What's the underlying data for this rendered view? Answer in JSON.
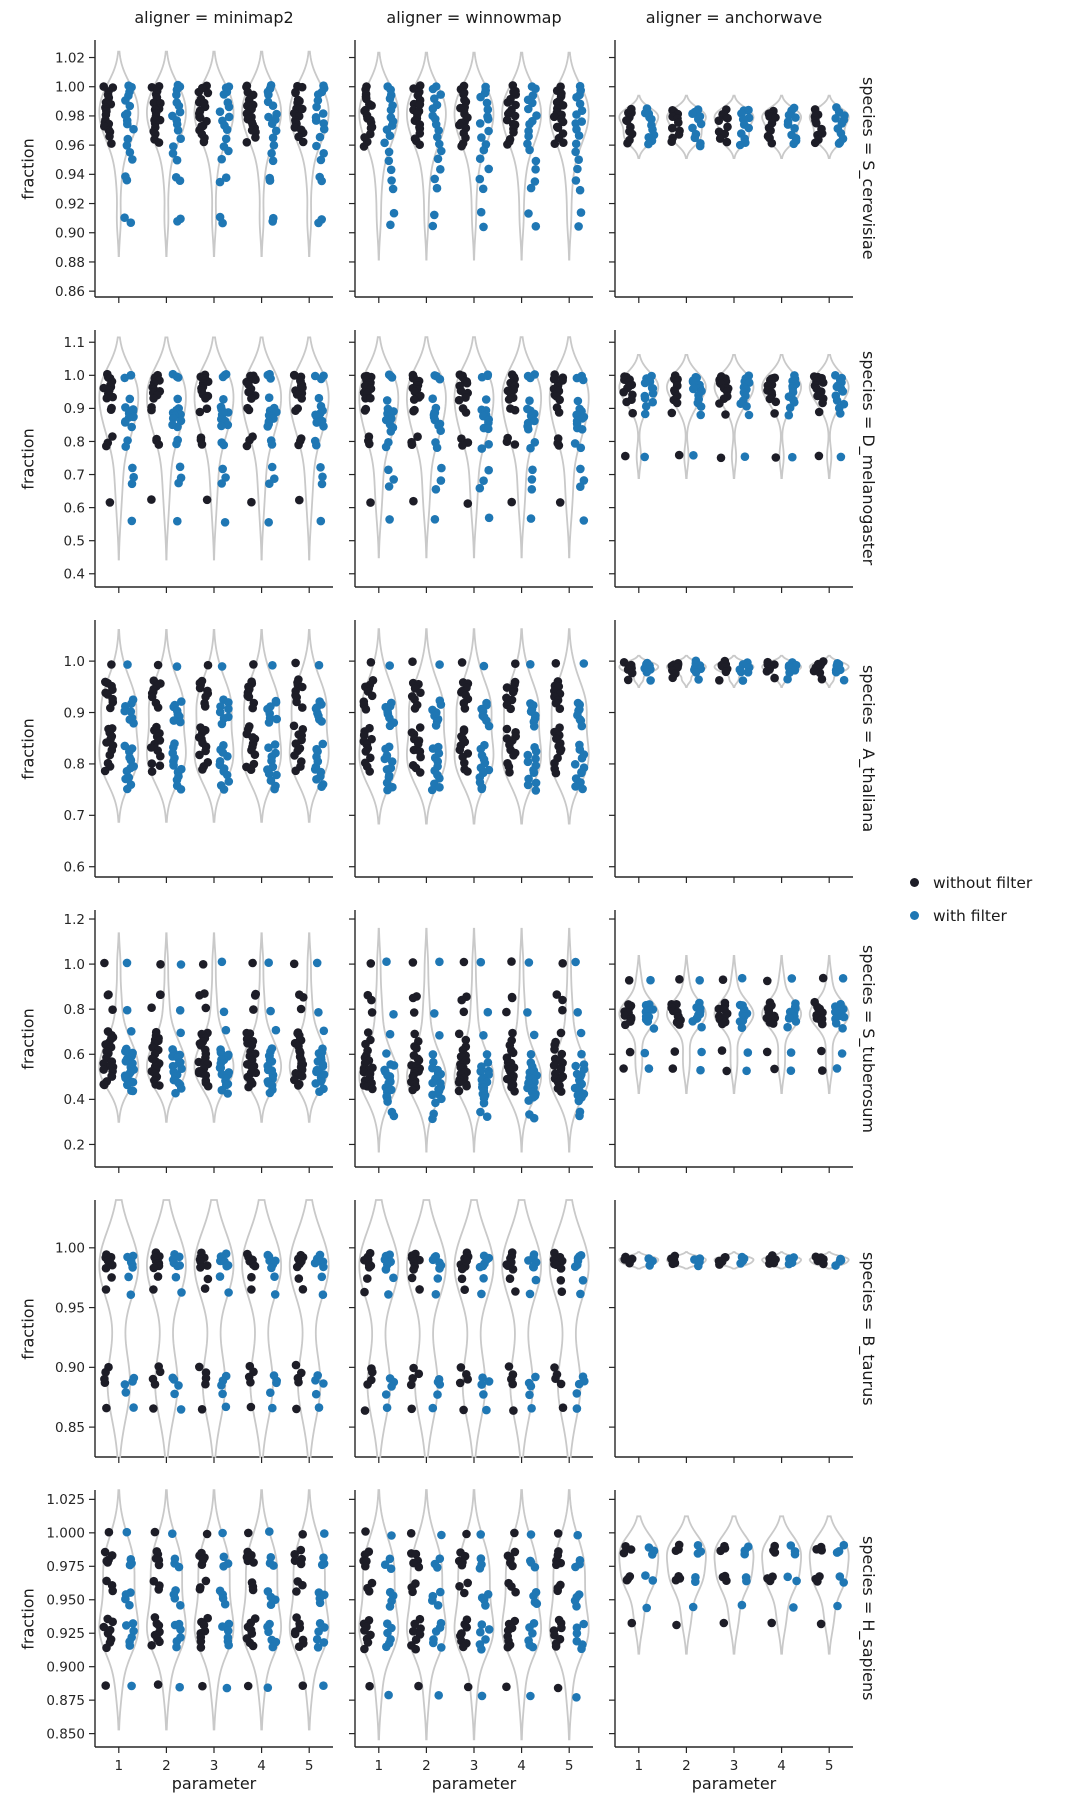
{
  "chart_data": {
    "type": "violin+strip faceted catplot",
    "xlabel": "parameter",
    "ylabel": "fraction",
    "x_categories": [
      "1",
      "2",
      "3",
      "4",
      "5"
    ],
    "violin_color": "#c9c9c9",
    "axis_color": "#262626",
    "legend": {
      "items": [
        {
          "label": "without filter",
          "color": "#1d1d27"
        },
        {
          "label": "with filter",
          "color": "#1f77b4"
        }
      ]
    },
    "columns": [
      {
        "title": "aligner = minimap2"
      },
      {
        "title": "aligner = winnowmap"
      },
      {
        "title": "aligner = anchorwave"
      }
    ],
    "rows": [
      {
        "label": "species = S_cerevisiae",
        "ylim": [
          0.856,
          1.032
        ],
        "ytick_vals": [
          0.86,
          0.88,
          0.9,
          0.92,
          0.94,
          0.96,
          0.98,
          1.0,
          1.02
        ],
        "ytick_labels": [
          "0.86",
          "0.88",
          "0.90",
          "0.92",
          "0.94",
          "0.96",
          "0.98",
          "1.00",
          "1.02"
        ]
      },
      {
        "label": "species = D_melanogaster",
        "ylim": [
          0.36,
          1.137
        ],
        "ytick_vals": [
          0.4,
          0.5,
          0.6,
          0.7,
          0.8,
          0.9,
          1.0,
          1.1
        ],
        "ytick_labels": [
          "0.4",
          "0.5",
          "0.6",
          "0.7",
          "0.8",
          "0.9",
          "1.0",
          "1.1"
        ]
      },
      {
        "label": "species = A_thaliana",
        "ylim": [
          0.58,
          1.08
        ],
        "ytick_vals": [
          0.6,
          0.7,
          0.8,
          0.9,
          1.0
        ],
        "ytick_labels": [
          "0.6",
          "0.7",
          "0.8",
          "0.9",
          "1.0"
        ]
      },
      {
        "label": "species = S_tuberosum",
        "ylim": [
          0.1,
          1.24
        ],
        "ytick_vals": [
          0.2,
          0.4,
          0.6,
          0.8,
          1.0,
          1.2
        ],
        "ytick_labels": [
          "0.2",
          "0.4",
          "0.6",
          "0.8",
          "1.0",
          "1.2"
        ]
      },
      {
        "label": "species = B_taurus",
        "ylim": [
          0.825,
          1.04
        ],
        "ytick_vals": [
          0.85,
          0.9,
          0.95,
          1.0
        ],
        "ytick_labels": [
          "0.85",
          "0.90",
          "0.95",
          "1.00"
        ]
      },
      {
        "label": "species = H_sapiens",
        "ylim": [
          0.84,
          1.032
        ],
        "ytick_vals": [
          0.85,
          0.875,
          0.9,
          0.925,
          0.95,
          0.975,
          1.0,
          1.025
        ],
        "ytick_labels": [
          "0.850",
          "0.875",
          "0.900",
          "0.925",
          "0.950",
          "0.975",
          "1.000",
          "1.025"
        ]
      }
    ],
    "facets": [
      {
        "row": 0,
        "col": 0,
        "series": [
          {
            "name": "without filter",
            "values": [
              1.001,
              0.999,
              0.997,
              0.995,
              0.992,
              0.99,
              0.988,
              0.986,
              0.984,
              0.982,
              0.98,
              0.978,
              0.976,
              0.974,
              0.972,
              0.97,
              0.968,
              0.965,
              0.962
            ]
          },
          {
            "name": "with filter",
            "values": [
              1.001,
              0.999,
              0.997,
              0.994,
              0.99,
              0.986,
              0.982,
              0.98,
              0.977,
              0.974,
              0.97,
              0.965,
              0.96,
              0.955,
              0.95,
              0.938,
              0.935,
              0.91,
              0.907
            ]
          }
        ]
      },
      {
        "row": 0,
        "col": 1,
        "series": [
          {
            "name": "without filter",
            "values": [
              1.0,
              0.998,
              0.996,
              0.994,
              0.991,
              0.989,
              0.987,
              0.985,
              0.983,
              0.981,
              0.979,
              0.977,
              0.975,
              0.973,
              0.971,
              0.968,
              0.965,
              0.962,
              0.96
            ]
          },
          {
            "name": "with filter",
            "values": [
              1.0,
              0.998,
              0.995,
              0.992,
              0.988,
              0.984,
              0.98,
              0.977,
              0.974,
              0.97,
              0.966,
              0.961,
              0.956,
              0.95,
              0.944,
              0.936,
              0.93,
              0.913,
              0.905
            ]
          }
        ]
      },
      {
        "row": 0,
        "col": 2,
        "series": [
          {
            "name": "without filter",
            "values": [
              0.984,
              0.982,
              0.981,
              0.979,
              0.978,
              0.976,
              0.972,
              0.969,
              0.967,
              0.964,
              0.962
            ]
          },
          {
            "name": "with filter",
            "values": [
              0.985,
              0.983,
              0.981,
              0.979,
              0.977,
              0.974,
              0.971,
              0.968,
              0.965,
              0.962,
              0.96
            ]
          }
        ]
      },
      {
        "row": 1,
        "col": 0,
        "series": [
          {
            "name": "without filter",
            "values": [
              1.0,
              0.997,
              0.993,
              0.988,
              0.982,
              0.975,
              0.968,
              0.96,
              0.952,
              0.945,
              0.938,
              0.93,
              0.9,
              0.893,
              0.812,
              0.8,
              0.79,
              0.62
            ]
          },
          {
            "name": "with filter",
            "values": [
              1.0,
              0.997,
              0.993,
              0.93,
              0.902,
              0.893,
              0.887,
              0.882,
              0.876,
              0.87,
              0.862,
              0.853,
              0.843,
              0.8,
              0.788,
              0.72,
              0.69,
              0.67,
              0.558
            ]
          }
        ]
      },
      {
        "row": 1,
        "col": 1,
        "series": [
          {
            "name": "without filter",
            "values": [
              1.0,
              0.996,
              0.992,
              0.987,
              0.98,
              0.973,
              0.965,
              0.957,
              0.95,
              0.942,
              0.935,
              0.927,
              0.898,
              0.89,
              0.81,
              0.798,
              0.788,
              0.615
            ]
          },
          {
            "name": "with filter",
            "values": [
              1.0,
              0.996,
              0.99,
              0.925,
              0.9,
              0.89,
              0.883,
              0.877,
              0.87,
              0.862,
              0.855,
              0.845,
              0.835,
              0.795,
              0.782,
              0.715,
              0.685,
              0.66,
              0.565
            ]
          }
        ]
      },
      {
        "row": 1,
        "col": 2,
        "series": [
          {
            "name": "without filter",
            "values": [
              0.996,
              0.992,
              0.988,
              0.983,
              0.978,
              0.972,
              0.965,
              0.957,
              0.948,
              0.938,
              0.928,
              0.917,
              0.885,
              0.755
            ]
          },
          {
            "name": "with filter",
            "values": [
              0.996,
              0.991,
              0.986,
              0.98,
              0.973,
              0.965,
              0.957,
              0.948,
              0.938,
              0.928,
              0.917,
              0.905,
              0.88,
              0.755
            ]
          }
        ]
      },
      {
        "row": 2,
        "col": 0,
        "series": [
          {
            "name": "without filter",
            "values": [
              0.995,
              0.962,
              0.957,
              0.952,
              0.947,
              0.941,
              0.935,
              0.928,
              0.92,
              0.91,
              0.872,
              0.866,
              0.86,
              0.853,
              0.846,
              0.84,
              0.833,
              0.826,
              0.818,
              0.802,
              0.795,
              0.788
            ]
          },
          {
            "name": "with filter",
            "values": [
              0.992,
              0.923,
              0.917,
              0.911,
              0.905,
              0.899,
              0.892,
              0.886,
              0.88,
              0.838,
              0.83,
              0.822,
              0.813,
              0.805,
              0.797,
              0.79,
              0.783,
              0.776,
              0.768,
              0.76,
              0.753
            ]
          }
        ]
      },
      {
        "row": 2,
        "col": 1,
        "series": [
          {
            "name": "without filter",
            "values": [
              0.996,
              0.96,
              0.955,
              0.95,
              0.944,
              0.938,
              0.931,
              0.924,
              0.916,
              0.906,
              0.87,
              0.863,
              0.856,
              0.85,
              0.843,
              0.836,
              0.829,
              0.822,
              0.814,
              0.8,
              0.792,
              0.785
            ]
          },
          {
            "name": "with filter",
            "values": [
              0.993,
              0.92,
              0.914,
              0.908,
              0.902,
              0.896,
              0.889,
              0.883,
              0.876,
              0.835,
              0.827,
              0.818,
              0.81,
              0.802,
              0.794,
              0.787,
              0.78,
              0.772,
              0.764,
              0.757,
              0.75
            ]
          }
        ]
      },
      {
        "row": 2,
        "col": 2,
        "series": [
          {
            "name": "without filter",
            "values": [
              0.998,
              0.995,
              0.992,
              0.989,
              0.986,
              0.983,
              0.979,
              0.965
            ]
          },
          {
            "name": "with filter",
            "values": [
              0.998,
              0.994,
              0.991,
              0.988,
              0.985,
              0.981,
              0.977,
              0.962
            ]
          }
        ]
      },
      {
        "row": 3,
        "col": 0,
        "series": [
          {
            "name": "without filter",
            "values": [
              1.005,
              0.87,
              0.858,
              0.8,
              0.7,
              0.688,
              0.678,
              0.668,
              0.658,
              0.648,
              0.635,
              0.615,
              0.6,
              0.585,
              0.572,
              0.56,
              0.55,
              0.54,
              0.53,
              0.52,
              0.51,
              0.5,
              0.485,
              0.47,
              0.46
            ]
          },
          {
            "name": "with filter",
            "values": [
              1.005,
              0.79,
              0.7,
              0.625,
              0.612,
              0.6,
              0.59,
              0.58,
              0.57,
              0.555,
              0.545,
              0.535,
              0.525,
              0.515,
              0.505,
              0.495,
              0.485,
              0.475,
              0.465,
              0.445,
              0.432
            ]
          }
        ]
      },
      {
        "row": 3,
        "col": 1,
        "series": [
          {
            "name": "without filter",
            "values": [
              1.005,
              0.86,
              0.845,
              0.79,
              0.69,
              0.66,
              0.64,
              0.62,
              0.6,
              0.585,
              0.57,
              0.558,
              0.547,
              0.537,
              0.527,
              0.517,
              0.507,
              0.497,
              0.487,
              0.477,
              0.465,
              0.452,
              0.44
            ]
          },
          {
            "name": "with filter",
            "values": [
              1.005,
              0.78,
              0.69,
              0.6,
              0.56,
              0.545,
              0.53,
              0.518,
              0.507,
              0.496,
              0.486,
              0.476,
              0.466,
              0.456,
              0.446,
              0.436,
              0.426,
              0.415,
              0.403,
              0.39,
              0.34,
              0.32
            ]
          }
        ]
      },
      {
        "row": 3,
        "col": 2,
        "series": [
          {
            "name": "without filter",
            "values": [
              0.932,
              0.825,
              0.815,
              0.805,
              0.795,
              0.785,
              0.775,
              0.765,
              0.755,
              0.745,
              0.735,
              0.612,
              0.532
            ]
          },
          {
            "name": "with filter",
            "values": [
              0.932,
              0.822,
              0.812,
              0.802,
              0.792,
              0.782,
              0.772,
              0.762,
              0.752,
              0.742,
              0.72,
              0.61,
              0.532
            ]
          }
        ]
      },
      {
        "row": 4,
        "col": 0,
        "series": [
          {
            "name": "without filter",
            "values": [
              0.995,
              0.993,
              0.991,
              0.99,
              0.988,
              0.986,
              0.984,
              0.975,
              0.965,
              0.901,
              0.896,
              0.891,
              0.887,
              0.866
            ]
          },
          {
            "name": "with filter",
            "values": [
              0.994,
              0.992,
              0.99,
              0.988,
              0.986,
              0.984,
              0.975,
              0.962,
              0.892,
              0.889,
              0.886,
              0.878,
              0.866
            ]
          }
        ]
      },
      {
        "row": 4,
        "col": 1,
        "series": [
          {
            "name": "without filter",
            "values": [
              0.995,
              0.993,
              0.991,
              0.989,
              0.987,
              0.985,
              0.983,
              0.974,
              0.964,
              0.9,
              0.895,
              0.89,
              0.886,
              0.865
            ]
          },
          {
            "name": "with filter",
            "values": [
              0.994,
              0.992,
              0.99,
              0.988,
              0.985,
              0.983,
              0.974,
              0.961,
              0.891,
              0.888,
              0.885,
              0.877,
              0.865
            ]
          }
        ]
      },
      {
        "row": 4,
        "col": 2,
        "series": [
          {
            "name": "without filter",
            "values": [
              0.993,
              0.991,
              0.99,
              0.988,
              0.986
            ]
          },
          {
            "name": "with filter",
            "values": [
              0.992,
              0.99,
              0.988,
              0.986
            ]
          }
        ]
      },
      {
        "row": 5,
        "col": 0,
        "series": [
          {
            "name": "without filter",
            "values": [
              1.0,
              0.986,
              0.984,
              0.981,
              0.979,
              0.977,
              0.963,
              0.96,
              0.957,
              0.936,
              0.933,
              0.93,
              0.927,
              0.924,
              0.921,
              0.918,
              0.915,
              0.886
            ]
          },
          {
            "name": "with filter",
            "values": [
              1.0,
              0.981,
              0.978,
              0.975,
              0.956,
              0.953,
              0.95,
              0.947,
              0.933,
              0.93,
              0.927,
              0.921,
              0.918,
              0.915,
              0.885
            ]
          }
        ]
      },
      {
        "row": 5,
        "col": 1,
        "series": [
          {
            "name": "without filter",
            "values": [
              1.0,
              0.985,
              0.983,
              0.98,
              0.978,
              0.975,
              0.962,
              0.959,
              0.956,
              0.935,
              0.932,
              0.929,
              0.926,
              0.923,
              0.92,
              0.917,
              0.914,
              0.885
            ]
          },
          {
            "name": "with filter",
            "values": [
              0.998,
              0.98,
              0.977,
              0.974,
              0.955,
              0.952,
              0.949,
              0.946,
              0.932,
              0.929,
              0.926,
              0.92,
              0.917,
              0.914,
              0.878
            ]
          }
        ]
      },
      {
        "row": 5,
        "col": 2,
        "series": [
          {
            "name": "without filter",
            "values": [
              0.99,
              0.988,
              0.986,
              0.968,
              0.966,
              0.964,
              0.932
            ]
          },
          {
            "name": "with filter",
            "values": [
              0.99,
              0.987,
              0.985,
              0.967,
              0.964,
              0.945
            ]
          }
        ]
      }
    ]
  }
}
